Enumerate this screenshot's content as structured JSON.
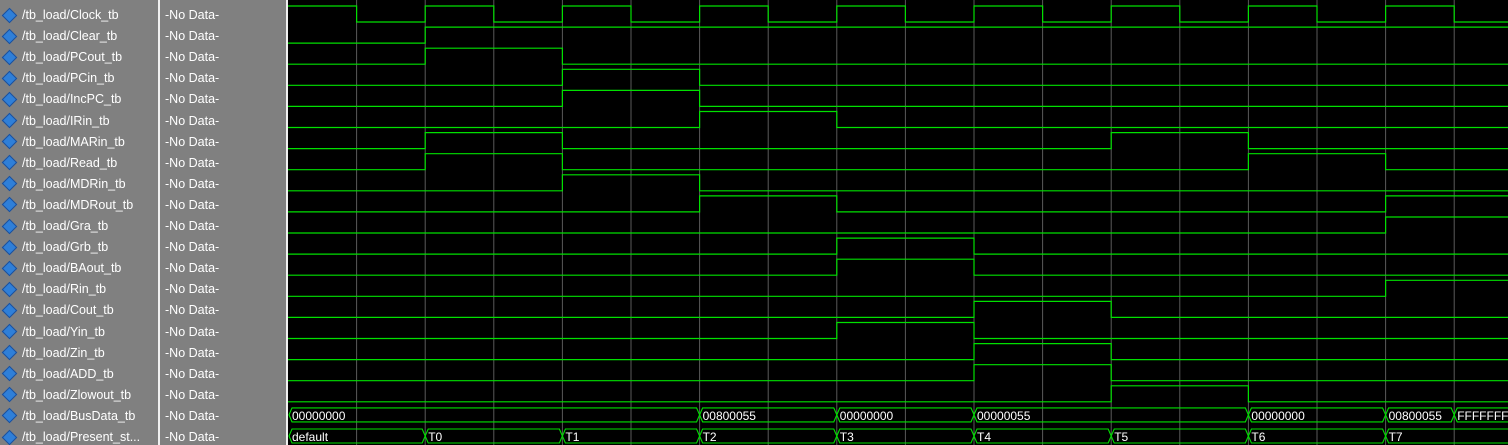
{
  "signals": [
    {
      "name": "/tb_load/Clock_tb",
      "value": "-No Data-",
      "icon": "signal-diamond-icon"
    },
    {
      "name": "/tb_load/Clear_tb",
      "value": "-No Data-",
      "icon": "signal-diamond-icon"
    },
    {
      "name": "/tb_load/PCout_tb",
      "value": "-No Data-",
      "icon": "signal-diamond-icon"
    },
    {
      "name": "/tb_load/PCin_tb",
      "value": "-No Data-",
      "icon": "signal-diamond-icon"
    },
    {
      "name": "/tb_load/IncPC_tb",
      "value": "-No Data-",
      "icon": "signal-diamond-icon"
    },
    {
      "name": "/tb_load/IRin_tb",
      "value": "-No Data-",
      "icon": "signal-diamond-icon"
    },
    {
      "name": "/tb_load/MARin_tb",
      "value": "-No Data-",
      "icon": "signal-diamond-icon"
    },
    {
      "name": "/tb_load/Read_tb",
      "value": "-No Data-",
      "icon": "signal-diamond-icon"
    },
    {
      "name": "/tb_load/MDRin_tb",
      "value": "-No Data-",
      "icon": "signal-diamond-icon"
    },
    {
      "name": "/tb_load/MDRout_tb",
      "value": "-No Data-",
      "icon": "signal-diamond-icon"
    },
    {
      "name": "/tb_load/Gra_tb",
      "value": "-No Data-",
      "icon": "signal-diamond-icon"
    },
    {
      "name": "/tb_load/Grb_tb",
      "value": "-No Data-",
      "icon": "signal-diamond-icon"
    },
    {
      "name": "/tb_load/BAout_tb",
      "value": "-No Data-",
      "icon": "signal-diamond-icon"
    },
    {
      "name": "/tb_load/Rin_tb",
      "value": "-No Data-",
      "icon": "signal-diamond-icon"
    },
    {
      "name": "/tb_load/Cout_tb",
      "value": "-No Data-",
      "icon": "signal-diamond-icon"
    },
    {
      "name": "/tb_load/Yin_tb",
      "value": "-No Data-",
      "icon": "signal-diamond-icon"
    },
    {
      "name": "/tb_load/Zin_tb",
      "value": "-No Data-",
      "icon": "signal-diamond-icon"
    },
    {
      "name": "/tb_load/ADD_tb",
      "value": "-No Data-",
      "icon": "signal-diamond-icon"
    },
    {
      "name": "/tb_load/Zlowout_tb",
      "value": "-No Data-",
      "icon": "signal-diamond-icon"
    },
    {
      "name": "/tb_load/BusData_tb",
      "value": "-No Data-",
      "icon": "signal-diamond-icon"
    },
    {
      "name": "/tb_load/Present_st...",
      "value": "-No Data-",
      "icon": "signal-diamond-icon"
    }
  ],
  "waves": {
    "clock_halfperiods": 18,
    "digital": [
      {
        "signal": "Clock_tb",
        "clock": true
      },
      {
        "signal": "Clear_tb",
        "high": [
          [
            2,
            18
          ]
        ]
      },
      {
        "signal": "PCout_tb",
        "high": [
          [
            2,
            4
          ]
        ]
      },
      {
        "signal": "PCin_tb",
        "high": [
          [
            4,
            6
          ]
        ]
      },
      {
        "signal": "IncPC_tb",
        "high": [
          [
            4,
            6
          ]
        ]
      },
      {
        "signal": "IRin_tb",
        "high": [
          [
            6,
            8
          ]
        ]
      },
      {
        "signal": "MARin_tb",
        "high": [
          [
            2,
            4
          ],
          [
            12,
            14
          ]
        ]
      },
      {
        "signal": "Read_tb",
        "high": [
          [
            2,
            4
          ],
          [
            14,
            16
          ]
        ]
      },
      {
        "signal": "MDRin_tb",
        "high": [
          [
            4,
            6
          ]
        ]
      },
      {
        "signal": "MDRout_tb",
        "high": [
          [
            6,
            8
          ],
          [
            16,
            18
          ]
        ]
      },
      {
        "signal": "Gra_tb",
        "high": [
          [
            16,
            18
          ]
        ]
      },
      {
        "signal": "Grb_tb",
        "high": [
          [
            8,
            10
          ]
        ]
      },
      {
        "signal": "BAout_tb",
        "high": [
          [
            8,
            10
          ]
        ]
      },
      {
        "signal": "Rin_tb",
        "high": [
          [
            16,
            18
          ]
        ]
      },
      {
        "signal": "Cout_tb",
        "high": [
          [
            10,
            12
          ]
        ]
      },
      {
        "signal": "Yin_tb",
        "high": [
          [
            8,
            10
          ]
        ]
      },
      {
        "signal": "Zin_tb",
        "high": [
          [
            10,
            12
          ]
        ]
      },
      {
        "signal": "ADD_tb",
        "high": [
          [
            10,
            12
          ]
        ]
      },
      {
        "signal": "Zlowout_tb",
        "high": [
          [
            12,
            14
          ]
        ]
      }
    ],
    "buses": [
      {
        "signal": "BusData_tb",
        "segments": [
          {
            "start": 0,
            "label": "00000000"
          },
          {
            "start": 6,
            "label": "00800055"
          },
          {
            "start": 8,
            "label": "00000000"
          },
          {
            "start": 10,
            "label": "00000055"
          },
          {
            "start": 14,
            "label": "00000000"
          },
          {
            "start": 16,
            "label": "00800055"
          },
          {
            "start": 17,
            "label": "FFFFFFFF"
          }
        ]
      },
      {
        "signal": "Present_state",
        "segments": [
          {
            "start": 0,
            "label": "default"
          },
          {
            "start": 2,
            "label": "T0"
          },
          {
            "start": 4,
            "label": "T1"
          },
          {
            "start": 6,
            "label": "T2"
          },
          {
            "start": 8,
            "label": "T3"
          },
          {
            "start": 10,
            "label": "T4"
          },
          {
            "start": 12,
            "label": "T5"
          },
          {
            "start": 14,
            "label": "T6"
          },
          {
            "start": 16,
            "label": "T7"
          }
        ]
      }
    ],
    "colors": {
      "wave": "#00e000",
      "grid": "#5a5a5a",
      "background": "#000000",
      "bus_text": "#ffffff"
    }
  }
}
